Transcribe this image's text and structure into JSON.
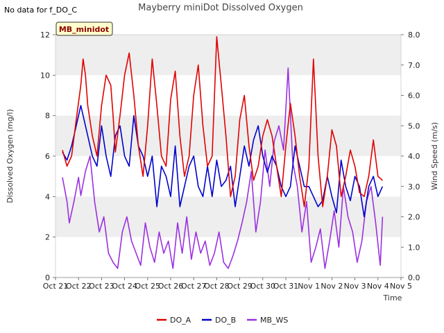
{
  "chart_data": {
    "type": "line",
    "title": "Mayberry miniDot Dissolved Oxygen",
    "note": "No data for f_DO_C",
    "site_label": "MB_minidot",
    "xlabel": "Time",
    "ylabel": "Dissolved Oxygen (mg/l)",
    "y2label": "Wind Speed (m/s)",
    "x_ticks": [
      "Oct 21",
      "Oct 22",
      "Oct 23",
      "Oct 24",
      "Oct 25",
      "Oct 26",
      "Oct 27",
      "Oct 28",
      "Oct 29",
      "Oct 30",
      "Oct 31",
      "Nov 1",
      "Nov 2",
      "Nov 3",
      "Nov 4",
      "Nov 5"
    ],
    "xlim": [
      "Oct 21",
      "Nov 5"
    ],
    "ylim": [
      0,
      12
    ],
    "y_ticks": [
      "0",
      "2",
      "4",
      "6",
      "8",
      "10",
      "12"
    ],
    "y2lim": [
      0,
      8
    ],
    "y2_ticks": [
      "0.0",
      "1.0",
      "2.0",
      "3.0",
      "4.0",
      "5.0",
      "6.0",
      "7.0",
      "8.0"
    ],
    "legend_position": "bottom-center",
    "grid": "alternating horizontal bands",
    "colors": {
      "DO_A": "#e00000",
      "DO_B": "#0000cc",
      "MB_WS": "#9b30e0",
      "band": "#eeeeee",
      "label_bg": "#ffffcc"
    },
    "series": [
      {
        "name": "DO_A",
        "axis": "left",
        "x": [
          0.3,
          0.5,
          0.7,
          0.9,
          1.1,
          1.2,
          1.3,
          1.4,
          1.6,
          1.8,
          2.0,
          2.2,
          2.4,
          2.5,
          2.6,
          2.8,
          3.0,
          3.2,
          3.4,
          3.6,
          3.8,
          4.0,
          4.2,
          4.4,
          4.6,
          4.8,
          5.0,
          5.2,
          5.4,
          5.6,
          5.8,
          6.0,
          6.2,
          6.4,
          6.6,
          6.8,
          7.0,
          7.2,
          7.4,
          7.6,
          7.8,
          8.0,
          8.2,
          8.4,
          8.6,
          8.8,
          9.0,
          9.2,
          9.4,
          9.6,
          9.8,
          10.0,
          10.2,
          10.4,
          10.6,
          10.8,
          11.0,
          11.2,
          11.4,
          11.6,
          11.8,
          12.0,
          12.2,
          12.4,
          12.6,
          12.8,
          13.0,
          13.2,
          13.4,
          13.6,
          13.8,
          14.0,
          14.2
        ],
        "y": [
          6.3,
          5.5,
          6.0,
          7.8,
          9.5,
          10.8,
          10.0,
          8.5,
          7.0,
          6.0,
          8.5,
          10.0,
          9.5,
          8.0,
          6.2,
          8.0,
          10.0,
          11.1,
          9.0,
          6.5,
          5.0,
          7.5,
          10.8,
          8.5,
          6.0,
          5.5,
          8.8,
          10.2,
          7.0,
          5.0,
          6.0,
          9.0,
          10.5,
          7.5,
          5.5,
          6.0,
          11.9,
          9.5,
          7.0,
          4.0,
          5.0,
          7.8,
          9.0,
          6.5,
          4.8,
          5.5,
          7.0,
          7.8,
          7.0,
          5.5,
          4.0,
          6.5,
          8.6,
          7.0,
          5.0,
          3.5,
          5.5,
          10.8,
          6.0,
          3.5,
          5.0,
          7.3,
          6.5,
          4.0,
          5.0,
          6.3,
          5.5,
          4.2,
          4.0,
          5.0,
          6.8,
          5.0,
          4.8
        ]
      },
      {
        "name": "DO_B",
        "axis": "left",
        "x": [
          0.3,
          0.5,
          0.7,
          0.9,
          1.1,
          1.2,
          1.4,
          1.6,
          1.8,
          2.0,
          2.2,
          2.4,
          2.6,
          2.8,
          3.0,
          3.2,
          3.4,
          3.6,
          3.8,
          4.0,
          4.2,
          4.4,
          4.6,
          4.8,
          5.0,
          5.2,
          5.4,
          5.6,
          5.8,
          6.0,
          6.2,
          6.4,
          6.6,
          6.8,
          7.0,
          7.2,
          7.4,
          7.6,
          7.8,
          8.0,
          8.2,
          8.4,
          8.6,
          8.8,
          9.0,
          9.2,
          9.4,
          9.6,
          9.8,
          10.0,
          10.2,
          10.4,
          10.6,
          10.8,
          11.0,
          11.2,
          11.4,
          11.6,
          11.8,
          12.0,
          12.2,
          12.4,
          12.6,
          12.8,
          13.0,
          13.2,
          13.4,
          13.6,
          13.8,
          14.0,
          14.2
        ],
        "y": [
          6.2,
          5.8,
          6.5,
          7.5,
          8.5,
          8.0,
          7.0,
          6.0,
          5.5,
          7.5,
          6.0,
          5.0,
          7.0,
          7.5,
          6.0,
          5.5,
          8.0,
          6.5,
          6.0,
          5.0,
          6.0,
          3.5,
          5.5,
          5.0,
          4.0,
          6.5,
          3.5,
          4.5,
          5.5,
          6.0,
          4.5,
          4.0,
          5.5,
          4.0,
          5.8,
          4.5,
          4.8,
          5.5,
          3.5,
          5.0,
          6.5,
          5.5,
          6.8,
          7.5,
          6.0,
          5.2,
          6.0,
          5.5,
          4.5,
          4.0,
          4.5,
          6.5,
          5.5,
          4.5,
          4.5,
          4.0,
          3.5,
          3.8,
          5.0,
          4.0,
          3.2,
          5.8,
          4.5,
          3.8,
          5.0,
          4.5,
          3.0,
          4.5,
          5.0,
          4.0,
          4.5
        ]
      },
      {
        "name": "MB_WS",
        "axis": "right",
        "x": [
          0.3,
          0.5,
          0.6,
          0.8,
          1.0,
          1.1,
          1.3,
          1.5,
          1.7,
          1.9,
          2.1,
          2.3,
          2.5,
          2.7,
          2.9,
          3.1,
          3.3,
          3.5,
          3.7,
          3.9,
          4.1,
          4.3,
          4.5,
          4.7,
          4.9,
          5.1,
          5.3,
          5.5,
          5.7,
          5.9,
          6.1,
          6.3,
          6.5,
          6.7,
          6.9,
          7.1,
          7.3,
          7.5,
          7.7,
          7.9,
          8.1,
          8.3,
          8.5,
          8.7,
          8.9,
          9.1,
          9.3,
          9.5,
          9.7,
          9.9,
          10.1,
          10.3,
          10.5,
          10.7,
          10.9,
          11.1,
          11.3,
          11.5,
          11.7,
          11.9,
          12.1,
          12.3,
          12.5,
          12.7,
          12.9,
          13.1,
          13.3,
          13.5,
          13.7,
          13.9,
          14.1,
          14.2
        ],
        "y": [
          3.3,
          2.5,
          1.8,
          2.5,
          3.3,
          2.7,
          3.5,
          4.0,
          2.5,
          1.5,
          2.0,
          0.8,
          0.5,
          0.3,
          1.5,
          2.0,
          1.2,
          0.8,
          0.4,
          1.8,
          1.0,
          0.5,
          1.5,
          0.8,
          1.2,
          0.3,
          1.8,
          0.8,
          2.0,
          0.6,
          1.5,
          0.8,
          1.2,
          0.4,
          0.8,
          1.5,
          0.5,
          0.3,
          0.7,
          1.2,
          1.8,
          2.5,
          3.5,
          1.5,
          2.5,
          4.2,
          3.0,
          4.5,
          5.0,
          4.2,
          6.9,
          3.8,
          3.0,
          1.5,
          2.5,
          0.5,
          1.0,
          1.6,
          0.3,
          1.2,
          2.2,
          1.0,
          3.0,
          2.0,
          1.5,
          0.5,
          1.2,
          2.5,
          3.0,
          1.8,
          0.4,
          2.0
        ]
      }
    ]
  }
}
